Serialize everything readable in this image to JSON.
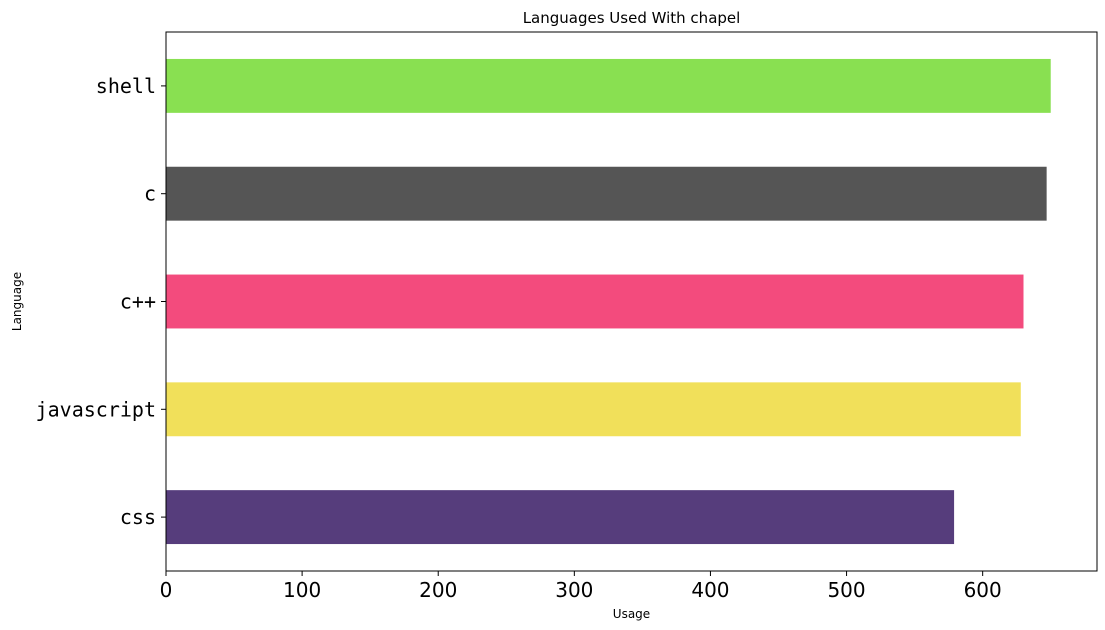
{
  "chart_data": {
    "type": "bar",
    "orientation": "horizontal",
    "title": "Languages Used With chapel",
    "xlabel": "Usage",
    "ylabel": "Language",
    "xlim": [
      0,
      684
    ],
    "xticks": [
      0,
      100,
      200,
      300,
      400,
      500,
      600
    ],
    "categories": [
      "shell",
      "c",
      "c++",
      "javascript",
      "css"
    ],
    "values": [
      650,
      647,
      630,
      628,
      579
    ],
    "colors": [
      "#89e051",
      "#555555",
      "#f34b7d",
      "#f1e05a",
      "#563d7c"
    ],
    "grid": false,
    "legend": "none"
  }
}
